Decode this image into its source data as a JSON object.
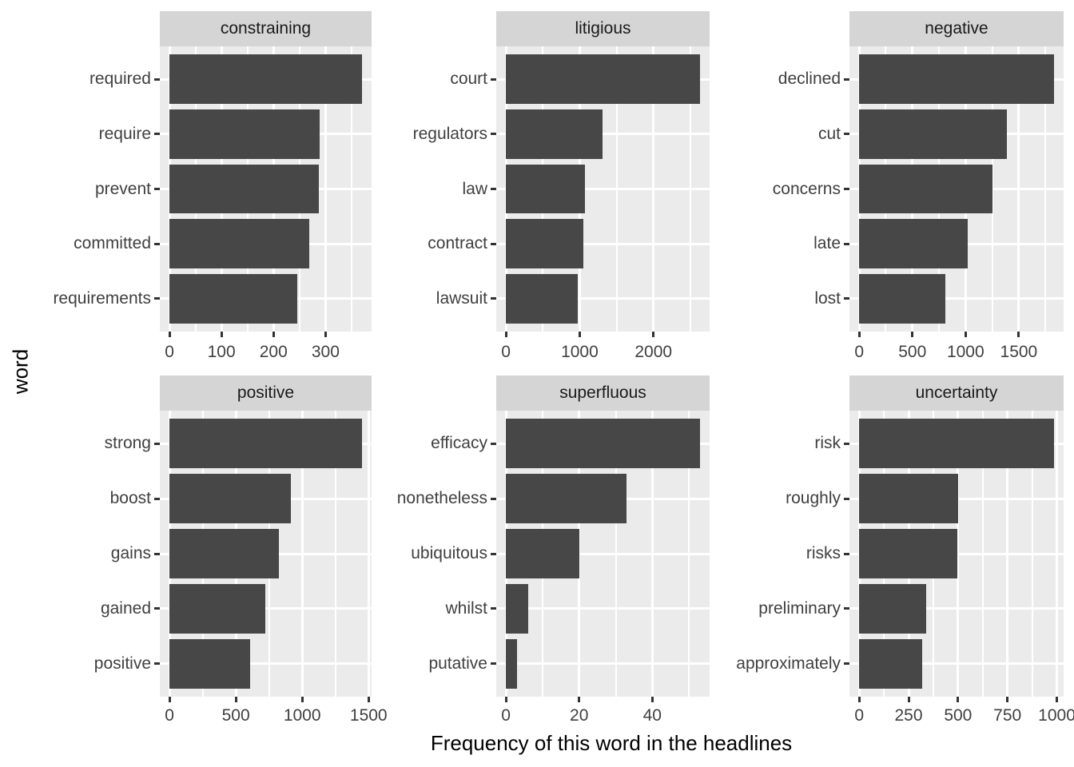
{
  "figure": {
    "x_axis_title": "Frequency of this word in the headlines",
    "y_axis_title": "word"
  },
  "chart_data": {
    "type": "bar",
    "orientation": "horizontal",
    "title": "",
    "xlabel": "Frequency of this word in the headlines",
    "ylabel": "word",
    "grid": true,
    "legend": false,
    "facet_layout": {
      "rows": 2,
      "cols": 3,
      "scales": "free"
    },
    "facets": [
      {
        "label": "constraining",
        "categories": [
          "required",
          "require",
          "prevent",
          "committed",
          "requirements"
        ],
        "values": [
          370,
          289,
          287,
          268,
          245
        ],
        "x_ticks": [
          0,
          100,
          200,
          300
        ],
        "x_minor_step": 50,
        "xlim": [
          0,
          389
        ]
      },
      {
        "label": "litigious",
        "categories": [
          "court",
          "regulators",
          "law",
          "contract",
          "lawsuit"
        ],
        "values": [
          2630,
          1315,
          1075,
          1050,
          975
        ],
        "x_ticks": [
          0,
          1000,
          2000
        ],
        "x_minor_step": 500,
        "xlim": [
          0,
          2762
        ]
      },
      {
        "label": "negative",
        "categories": [
          "declined",
          "cut",
          "concerns",
          "late",
          "lost"
        ],
        "values": [
          1830,
          1390,
          1255,
          1020,
          810
        ],
        "x_ticks": [
          0,
          500,
          1000,
          1500
        ],
        "x_minor_step": 250,
        "xlim": [
          0,
          1922
        ]
      },
      {
        "label": "positive",
        "categories": [
          "strong",
          "boost",
          "gains",
          "gained",
          "positive"
        ],
        "values": [
          1450,
          915,
          825,
          720,
          605
        ],
        "x_ticks": [
          0,
          500,
          1000,
          1500
        ],
        "x_minor_step": 250,
        "xlim": [
          0,
          1523
        ]
      },
      {
        "label": "superfluous",
        "categories": [
          "efficacy",
          "nonetheless",
          "ubiquitous",
          "whilst",
          "putative"
        ],
        "values": [
          53,
          33,
          20,
          6,
          3
        ],
        "x_ticks": [
          0,
          20,
          40
        ],
        "x_minor_step": 10,
        "xlim": [
          0,
          56
        ]
      },
      {
        "label": "uncertainty",
        "categories": [
          "risk",
          "roughly",
          "risks",
          "preliminary",
          "approximately"
        ],
        "values": [
          985,
          500,
          498,
          340,
          320
        ],
        "x_ticks": [
          0,
          250,
          500,
          750,
          1000
        ],
        "x_minor_step": 125,
        "xlim": [
          0,
          1034
        ]
      }
    ],
    "style": {
      "bar_color": "#474747",
      "panel_bg": "#EBEBEB",
      "strip_bg": "#D5D5D5",
      "grid_color": "#FFFFFF",
      "tick_color": "#333333",
      "axis_text_color": "#404040",
      "strip_text_color": "#1A1A1A",
      "title_color": "#000000"
    }
  }
}
